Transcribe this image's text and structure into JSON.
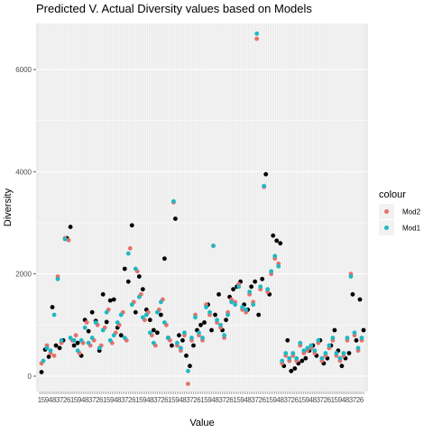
{
  "chart_data": {
    "type": "scatter",
    "title": "Predicted V. Actual Diversity values based on Models",
    "xlabel": "Value",
    "ylabel": "Diversity",
    "ylim": [
      -300,
      6900
    ],
    "y_ticks": [
      0,
      2000,
      4000,
      6000
    ],
    "x_ticks_note": "one overlapping tick label per observation",
    "grid": true,
    "legend": {
      "title": "colour",
      "placement": "right",
      "entries": [
        {
          "label": "Mod2",
          "color": "#E7706A"
        },
        {
          "label": "Mod1",
          "color": "#1FB8C2"
        }
      ]
    },
    "actual_color": "#000000",
    "x_count": 360,
    "series": [
      {
        "name": "",
        "color": "#000000",
        "points": [
          [
            2,
            80
          ],
          [
            6,
            520
          ],
          [
            10,
            380
          ],
          [
            14,
            1350
          ],
          [
            18,
            600
          ],
          [
            22,
            550
          ],
          [
            26,
            700
          ],
          [
            30,
            2700
          ],
          [
            34,
            2920
          ],
          [
            38,
            600
          ],
          [
            42,
            650
          ],
          [
            46,
            400
          ],
          [
            50,
            1100
          ],
          [
            54,
            880
          ],
          [
            58,
            1250
          ],
          [
            62,
            1080
          ],
          [
            66,
            500
          ],
          [
            70,
            1600
          ],
          [
            74,
            1060
          ],
          [
            78,
            1480
          ],
          [
            82,
            1500
          ],
          [
            86,
            950
          ],
          [
            90,
            800
          ],
          [
            94,
            2100
          ],
          [
            98,
            1850
          ],
          [
            102,
            2950
          ],
          [
            106,
            1250
          ],
          [
            110,
            1950
          ],
          [
            114,
            1700
          ],
          [
            118,
            1300
          ],
          [
            122,
            1100
          ],
          [
            126,
            900
          ],
          [
            130,
            850
          ],
          [
            134,
            1200
          ],
          [
            138,
            2300
          ],
          [
            142,
            750
          ],
          [
            146,
            600
          ],
          [
            150,
            3080
          ],
          [
            154,
            800
          ],
          [
            158,
            700
          ],
          [
            162,
            400
          ],
          [
            166,
            200
          ],
          [
            170,
            600
          ],
          [
            174,
            900
          ],
          [
            178,
            1000
          ],
          [
            182,
            1050
          ],
          [
            186,
            1400
          ],
          [
            190,
            900
          ],
          [
            194,
            1200
          ],
          [
            198,
            1600
          ],
          [
            202,
            900
          ],
          [
            206,
            1100
          ],
          [
            210,
            1550
          ],
          [
            214,
            1700
          ],
          [
            218,
            1750
          ],
          [
            222,
            1850
          ],
          [
            226,
            1400
          ],
          [
            230,
            1300
          ],
          [
            234,
            1750
          ],
          [
            238,
            1850
          ],
          [
            242,
            1200
          ],
          [
            246,
            1900
          ],
          [
            250,
            3950
          ],
          [
            254,
            1600
          ],
          [
            258,
            2750
          ],
          [
            262,
            2650
          ],
          [
            266,
            2600
          ],
          [
            270,
            200
          ],
          [
            274,
            700
          ],
          [
            278,
            100
          ],
          [
            282,
            150
          ],
          [
            286,
            250
          ],
          [
            290,
            300
          ],
          [
            294,
            350
          ],
          [
            298,
            500
          ],
          [
            302,
            600
          ],
          [
            306,
            400
          ],
          [
            310,
            700
          ],
          [
            314,
            250
          ],
          [
            318,
            350
          ],
          [
            322,
            600
          ],
          [
            326,
            900
          ],
          [
            330,
            500
          ],
          [
            334,
            200
          ],
          [
            338,
            350
          ],
          [
            342,
            450
          ],
          [
            346,
            1600
          ],
          [
            350,
            700
          ],
          [
            354,
            1500
          ],
          [
            358,
            900
          ]
        ]
      },
      {
        "name": "Mod2",
        "color": "#E7706A",
        "points": [
          [
            2,
            250
          ],
          [
            8,
            600
          ],
          [
            12,
            450
          ],
          [
            16,
            400
          ],
          [
            20,
            1950
          ],
          [
            24,
            650
          ],
          [
            28,
            2700
          ],
          [
            32,
            2660
          ],
          [
            36,
            700
          ],
          [
            40,
            800
          ],
          [
            44,
            450
          ],
          [
            48,
            650
          ],
          [
            52,
            1050
          ],
          [
            56,
            600
          ],
          [
            60,
            700
          ],
          [
            64,
            1000
          ],
          [
            68,
            600
          ],
          [
            72,
            950
          ],
          [
            76,
            1300
          ],
          [
            80,
            650
          ],
          [
            84,
            850
          ],
          [
            88,
            1000
          ],
          [
            92,
            1250
          ],
          [
            96,
            700
          ],
          [
            100,
            2500
          ],
          [
            104,
            1450
          ],
          [
            108,
            2050
          ],
          [
            112,
            1600
          ],
          [
            116,
            1100
          ],
          [
            120,
            1250
          ],
          [
            124,
            800
          ],
          [
            128,
            600
          ],
          [
            132,
            1300
          ],
          [
            136,
            1500
          ],
          [
            140,
            1000
          ],
          [
            144,
            700
          ],
          [
            148,
            3400
          ],
          [
            152,
            600
          ],
          [
            156,
            500
          ],
          [
            160,
            800
          ],
          [
            164,
            -150
          ],
          [
            168,
            700
          ],
          [
            172,
            1200
          ],
          [
            176,
            800
          ],
          [
            180,
            700
          ],
          [
            184,
            1400
          ],
          [
            188,
            1200
          ],
          [
            192,
            2550
          ],
          [
            196,
            1050
          ],
          [
            200,
            950
          ],
          [
            204,
            750
          ],
          [
            208,
            1250
          ],
          [
            212,
            1500
          ],
          [
            216,
            1450
          ],
          [
            220,
            1800
          ],
          [
            224,
            1300
          ],
          [
            228,
            1250
          ],
          [
            232,
            1600
          ],
          [
            236,
            1450
          ],
          [
            240,
            6600
          ],
          [
            244,
            1700
          ],
          [
            248,
            3700
          ],
          [
            252,
            1650
          ],
          [
            256,
            2000
          ],
          [
            260,
            2300
          ],
          [
            264,
            2200
          ],
          [
            268,
            250
          ],
          [
            272,
            400
          ],
          [
            276,
            300
          ],
          [
            280,
            400
          ],
          [
            284,
            300
          ],
          [
            288,
            600
          ],
          [
            292,
            450
          ],
          [
            296,
            500
          ],
          [
            300,
            550
          ],
          [
            304,
            450
          ],
          [
            308,
            650
          ],
          [
            312,
            300
          ],
          [
            316,
            400
          ],
          [
            320,
            550
          ],
          [
            324,
            700
          ],
          [
            328,
            400
          ],
          [
            332,
            300
          ],
          [
            336,
            400
          ],
          [
            340,
            700
          ],
          [
            344,
            2000
          ],
          [
            348,
            800
          ],
          [
            352,
            500
          ],
          [
            356,
            700
          ]
        ]
      },
      {
        "name": "Mod1",
        "color": "#1FB8C2",
        "points": [
          [
            4,
            300
          ],
          [
            8,
            550
          ],
          [
            12,
            500
          ],
          [
            16,
            1200
          ],
          [
            20,
            1900
          ],
          [
            24,
            700
          ],
          [
            28,
            2680
          ],
          [
            34,
            750
          ],
          [
            38,
            700
          ],
          [
            42,
            500
          ],
          [
            46,
            700
          ],
          [
            50,
            950
          ],
          [
            54,
            650
          ],
          [
            58,
            750
          ],
          [
            62,
            1050
          ],
          [
            66,
            550
          ],
          [
            70,
            900
          ],
          [
            74,
            1250
          ],
          [
            78,
            700
          ],
          [
            82,
            800
          ],
          [
            86,
            1050
          ],
          [
            90,
            1200
          ],
          [
            94,
            750
          ],
          [
            98,
            2400
          ],
          [
            102,
            1400
          ],
          [
            106,
            2100
          ],
          [
            110,
            1550
          ],
          [
            114,
            1150
          ],
          [
            118,
            1200
          ],
          [
            122,
            850
          ],
          [
            126,
            650
          ],
          [
            130,
            1250
          ],
          [
            134,
            1450
          ],
          [
            138,
            1050
          ],
          [
            142,
            750
          ],
          [
            148,
            3420
          ],
          [
            152,
            650
          ],
          [
            156,
            550
          ],
          [
            160,
            850
          ],
          [
            164,
            100
          ],
          [
            168,
            750
          ],
          [
            172,
            1150
          ],
          [
            176,
            850
          ],
          [
            180,
            750
          ],
          [
            184,
            1350
          ],
          [
            188,
            1250
          ],
          [
            192,
            2550
          ],
          [
            196,
            1100
          ],
          [
            200,
            1000
          ],
          [
            204,
            800
          ],
          [
            208,
            1200
          ],
          [
            212,
            1450
          ],
          [
            216,
            1400
          ],
          [
            220,
            1750
          ],
          [
            224,
            1350
          ],
          [
            228,
            1300
          ],
          [
            232,
            1650
          ],
          [
            236,
            1400
          ],
          [
            240,
            6700
          ],
          [
            244,
            1750
          ],
          [
            248,
            3720
          ],
          [
            252,
            1700
          ],
          [
            256,
            2050
          ],
          [
            260,
            2350
          ],
          [
            264,
            2150
          ],
          [
            268,
            300
          ],
          [
            272,
            450
          ],
          [
            276,
            350
          ],
          [
            280,
            450
          ],
          [
            284,
            350
          ],
          [
            288,
            650
          ],
          [
            292,
            500
          ],
          [
            296,
            550
          ],
          [
            300,
            600
          ],
          [
            304,
            500
          ],
          [
            308,
            700
          ],
          [
            312,
            350
          ],
          [
            316,
            450
          ],
          [
            320,
            600
          ],
          [
            324,
            750
          ],
          [
            328,
            450
          ],
          [
            332,
            350
          ],
          [
            336,
            450
          ],
          [
            340,
            750
          ],
          [
            344,
            1950
          ],
          [
            348,
            850
          ],
          [
            352,
            550
          ],
          [
            356,
            750
          ]
        ]
      }
    ]
  }
}
